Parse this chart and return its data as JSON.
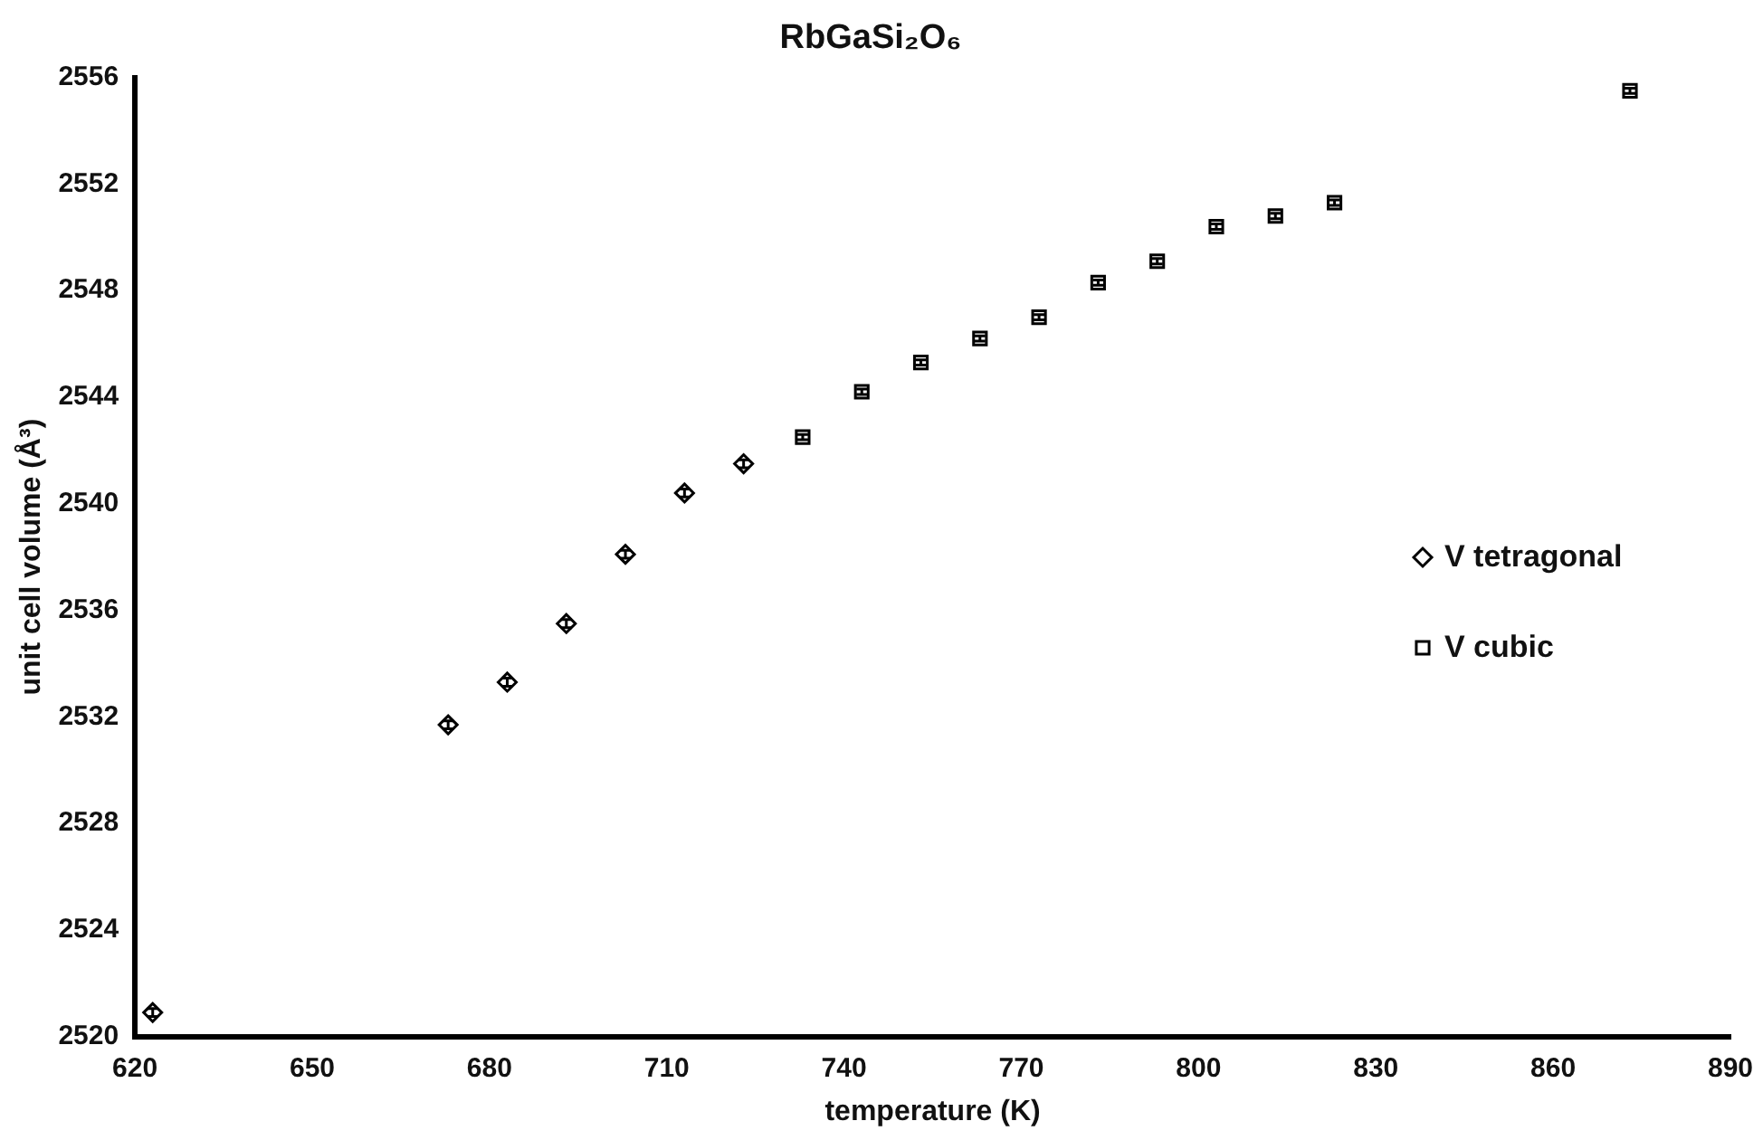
{
  "chart_data": {
    "type": "scatter",
    "title": "RbGaSi₂O₆",
    "xlabel": "temperature (K)",
    "ylabel": "unit cell volume (Å³)",
    "xlim": [
      620,
      890
    ],
    "xticks": [
      620,
      650,
      680,
      710,
      740,
      770,
      800,
      830,
      860,
      890
    ],
    "ylim": [
      2520,
      2556
    ],
    "yticks": [
      2520,
      2524,
      2528,
      2532,
      2536,
      2540,
      2544,
      2548,
      2552,
      2556
    ],
    "grid": false,
    "legend": "right",
    "series": [
      {
        "name": "V tetragonal",
        "color": "#000000",
        "marker": "diamond",
        "x": [
          623,
          673,
          683,
          693,
          703,
          713,
          723
        ],
        "values": [
          2520.9,
          2531.7,
          2533.3,
          2535.5,
          2538.1,
          2540.4,
          2541.5
        ],
        "errors": [
          0.15,
          0.15,
          0.15,
          0.15,
          0.15,
          0.15,
          0.15
        ]
      },
      {
        "name": "V cubic",
        "color": "#000000",
        "marker": "square",
        "x": [
          733,
          743,
          753,
          763,
          773,
          783,
          793,
          803,
          813,
          823,
          873
        ],
        "values": [
          2542.5,
          2544.2,
          2545.3,
          2546.2,
          2547.0,
          2548.3,
          2549.1,
          2550.4,
          2550.8,
          2551.3,
          2555.5
        ],
        "errors": [
          0.1,
          0.1,
          0.1,
          0.1,
          0.1,
          0.1,
          0.1,
          0.1,
          0.1,
          0.1,
          0.1
        ]
      }
    ]
  }
}
